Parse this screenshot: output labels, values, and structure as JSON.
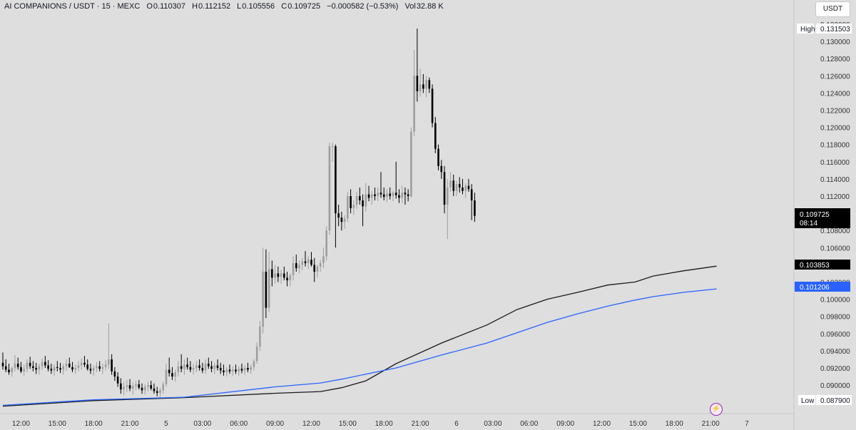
{
  "header": {
    "symbol": "AI COMPANIONS / USDT · 15 · MEXC",
    "open_label": "O",
    "open": "0.110307",
    "high_label": "H",
    "high": "0.112152",
    "low_label": "L",
    "low": "0.105556",
    "close_label": "C",
    "close": "0.109725",
    "change": "−0.000582 (−0.53%)",
    "volume_label": "Vol",
    "volume": "32.88 K"
  },
  "currency_button": "USDT",
  "price_axis": {
    "ticks": [
      "0.132000",
      "0.130000",
      "0.128000",
      "0.126000",
      "0.124000",
      "0.122000",
      "0.120000",
      "0.118000",
      "0.116000",
      "0.114000",
      "0.112000",
      "0.108000",
      "0.106000",
      "0.102000",
      "0.100000",
      "0.098000",
      "0.096000",
      "0.094000",
      "0.092000",
      "0.090000"
    ],
    "high_label": "High",
    "high_value": "0.131503",
    "low_label": "Low",
    "low_value": "0.087900",
    "last_price": "0.109725",
    "countdown": "08:14",
    "ma_black_value": "0.103853",
    "ma_blue_value": "0.101206"
  },
  "time_axis": [
    "12:00",
    "15:00",
    "18:00",
    "21:00",
    "5",
    "03:00",
    "06:00",
    "09:00",
    "12:00",
    "15:00",
    "18:00",
    "21:00",
    "6",
    "03:00",
    "06:00",
    "09:00",
    "12:00",
    "15:00",
    "18:00",
    "21:00",
    "7"
  ],
  "colors": {
    "up": "#9e9e9e",
    "down": "#000000",
    "ma_black": "#1a1a1a",
    "ma_blue": "#2962ff",
    "accent": "#9c27b0"
  },
  "chart_data": {
    "type": "candlestick",
    "x_start": "4 12:00",
    "interval": "15m",
    "ylim": [
      0.0865,
      0.1325
    ],
    "candles": [
      [
        0.0926,
        0.0938,
        0.0918,
        0.0922
      ],
      [
        0.0922,
        0.093,
        0.0915,
        0.0918
      ],
      [
        0.0918,
        0.0925,
        0.0912,
        0.0915
      ],
      [
        0.0915,
        0.0922,
        0.091,
        0.092
      ],
      [
        0.092,
        0.0935,
        0.0916,
        0.0925
      ],
      [
        0.0925,
        0.0932,
        0.0918,
        0.0921
      ],
      [
        0.0921,
        0.0927,
        0.0914,
        0.0916
      ],
      [
        0.0916,
        0.0924,
        0.0911,
        0.0919
      ],
      [
        0.0919,
        0.093,
        0.0915,
        0.0926
      ],
      [
        0.0926,
        0.0933,
        0.0919,
        0.0922
      ],
      [
        0.0922,
        0.0928,
        0.0916,
        0.092
      ],
      [
        0.092,
        0.0926,
        0.0913,
        0.0918
      ],
      [
        0.0918,
        0.0925,
        0.0912,
        0.0922
      ],
      [
        0.0922,
        0.0931,
        0.0918,
        0.0927
      ],
      [
        0.0927,
        0.0934,
        0.092,
        0.0923
      ],
      [
        0.0923,
        0.0929,
        0.0916,
        0.0919
      ],
      [
        0.0919,
        0.0925,
        0.0913,
        0.0917
      ],
      [
        0.0917,
        0.0924,
        0.0911,
        0.0921
      ],
      [
        0.0921,
        0.0928,
        0.0916,
        0.092
      ],
      [
        0.092,
        0.0926,
        0.0914,
        0.0918
      ],
      [
        0.0918,
        0.0925,
        0.0912,
        0.0922
      ],
      [
        0.0922,
        0.093,
        0.0917,
        0.0925
      ],
      [
        0.0925,
        0.0932,
        0.092,
        0.0921
      ],
      [
        0.0921,
        0.0927,
        0.0915,
        0.0918
      ],
      [
        0.0918,
        0.0924,
        0.0913,
        0.092
      ],
      [
        0.092,
        0.0928,
        0.0916,
        0.0923
      ],
      [
        0.0923,
        0.0931,
        0.0918,
        0.0926
      ],
      [
        0.0926,
        0.0934,
        0.0921,
        0.0924
      ],
      [
        0.0924,
        0.093,
        0.0917,
        0.0919
      ],
      [
        0.0919,
        0.0925,
        0.0913,
        0.0917
      ],
      [
        0.0917,
        0.0923,
        0.0911,
        0.092
      ],
      [
        0.092,
        0.0927,
        0.0915,
        0.0922
      ],
      [
        0.0922,
        0.0928,
        0.0916,
        0.0919
      ],
      [
        0.0919,
        0.0925,
        0.0913,
        0.0921
      ],
      [
        0.0921,
        0.0929,
        0.0917,
        0.0924
      ],
      [
        0.0924,
        0.0972,
        0.0919,
        0.093
      ],
      [
        0.093,
        0.0936,
        0.0912,
        0.0916
      ],
      [
        0.0916,
        0.0921,
        0.0905,
        0.091
      ],
      [
        0.091,
        0.0915,
        0.0898,
        0.0902
      ],
      [
        0.0902,
        0.0908,
        0.089,
        0.0895
      ],
      [
        0.0895,
        0.0904,
        0.0888,
        0.0898
      ],
      [
        0.0898,
        0.0906,
        0.0892,
        0.09
      ],
      [
        0.09,
        0.0907,
        0.0893,
        0.0896
      ],
      [
        0.0896,
        0.0903,
        0.0889,
        0.0899
      ],
      [
        0.0899,
        0.0905,
        0.0894,
        0.0901
      ],
      [
        0.0901,
        0.0906,
        0.0895,
        0.0897
      ],
      [
        0.0897,
        0.0902,
        0.089,
        0.0894
      ],
      [
        0.0894,
        0.0901,
        0.0889,
        0.0898
      ],
      [
        0.0898,
        0.0904,
        0.0893,
        0.09
      ],
      [
        0.09,
        0.0905,
        0.0894,
        0.0896
      ],
      [
        0.0896,
        0.0902,
        0.089,
        0.0893
      ],
      [
        0.0893,
        0.0898,
        0.0887,
        0.0891
      ],
      [
        0.0891,
        0.0897,
        0.0886,
        0.0894
      ],
      [
        0.0894,
        0.0904,
        0.089,
        0.0901
      ],
      [
        0.0901,
        0.0925,
        0.0898,
        0.0918
      ],
      [
        0.0918,
        0.0932,
        0.091,
        0.0914
      ],
      [
        0.0914,
        0.0921,
        0.0906,
        0.091
      ],
      [
        0.091,
        0.0918,
        0.0904,
        0.0915
      ],
      [
        0.0915,
        0.0928,
        0.091,
        0.0922
      ],
      [
        0.0922,
        0.0936,
        0.0915,
        0.0919
      ],
      [
        0.0919,
        0.093,
        0.0912,
        0.0924
      ],
      [
        0.0924,
        0.0932,
        0.0918,
        0.0921
      ],
      [
        0.0921,
        0.0928,
        0.0915,
        0.0918
      ],
      [
        0.0918,
        0.0925,
        0.0912,
        0.092
      ],
      [
        0.092,
        0.0928,
        0.0915,
        0.0923
      ],
      [
        0.0923,
        0.093,
        0.0917,
        0.092
      ],
      [
        0.092,
        0.0926,
        0.0914,
        0.0917
      ],
      [
        0.0917,
        0.093,
        0.0913,
        0.0925
      ],
      [
        0.0925,
        0.0932,
        0.0919,
        0.0922
      ],
      [
        0.0922,
        0.0928,
        0.0915,
        0.0919
      ],
      [
        0.0919,
        0.0926,
        0.0913,
        0.0923
      ],
      [
        0.0923,
        0.093,
        0.0917,
        0.092
      ],
      [
        0.092,
        0.0926,
        0.0913,
        0.0917
      ],
      [
        0.0917,
        0.0924,
        0.0911,
        0.0915
      ],
      [
        0.0915,
        0.0921,
        0.091,
        0.0918
      ],
      [
        0.0918,
        0.0924,
        0.0913,
        0.0916
      ],
      [
        0.0916,
        0.0922,
        0.0911,
        0.0918
      ],
      [
        0.0918,
        0.0924,
        0.0913,
        0.0916
      ],
      [
        0.0916,
        0.0922,
        0.0911,
        0.0919
      ],
      [
        0.0919,
        0.0925,
        0.0914,
        0.0917
      ],
      [
        0.0917,
        0.0923,
        0.0912,
        0.092
      ],
      [
        0.092,
        0.0926,
        0.0915,
        0.0918
      ],
      [
        0.0918,
        0.0924,
        0.0913,
        0.0921
      ],
      [
        0.0921,
        0.093,
        0.0917,
        0.0928
      ],
      [
        0.0928,
        0.095,
        0.0925,
        0.0945
      ],
      [
        0.0945,
        0.0975,
        0.094,
        0.0968
      ],
      [
        0.0968,
        0.106,
        0.096,
        0.1032
      ],
      [
        0.1032,
        0.1058,
        0.0978,
        0.099
      ],
      [
        0.099,
        0.1055,
        0.0985,
        0.1035
      ],
      [
        0.1035,
        0.1045,
        0.1015,
        0.1025
      ],
      [
        0.1025,
        0.104,
        0.1018,
        0.103
      ],
      [
        0.103,
        0.1038,
        0.102,
        0.1026
      ],
      [
        0.1026,
        0.1034,
        0.1018,
        0.103
      ],
      [
        0.103,
        0.1038,
        0.1022,
        0.1025
      ],
      [
        0.1025,
        0.1032,
        0.1015,
        0.1022
      ],
      [
        0.1022,
        0.103,
        0.1015,
        0.1028
      ],
      [
        0.1028,
        0.105,
        0.1022,
        0.1042
      ],
      [
        0.1042,
        0.1052,
        0.1032,
        0.1036
      ],
      [
        0.1036,
        0.1045,
        0.103,
        0.104
      ],
      [
        0.104,
        0.1048,
        0.1034,
        0.1044
      ],
      [
        0.1044,
        0.1056,
        0.1038,
        0.1042
      ],
      [
        0.1042,
        0.105,
        0.1035,
        0.1046
      ],
      [
        0.1046,
        0.1055,
        0.1038,
        0.104
      ],
      [
        0.104,
        0.1048,
        0.102,
        0.1032
      ],
      [
        0.1032,
        0.104,
        0.1025,
        0.1038
      ],
      [
        0.1038,
        0.1046,
        0.1032,
        0.1042
      ],
      [
        0.1042,
        0.106,
        0.1036,
        0.105
      ],
      [
        0.105,
        0.1085,
        0.1045,
        0.108
      ],
      [
        0.108,
        0.1182,
        0.1075,
        0.1178
      ],
      [
        0.1178,
        0.1182,
        0.116,
        0.1178
      ],
      [
        0.1178,
        0.118,
        0.106,
        0.11
      ],
      [
        0.11,
        0.111,
        0.1085,
        0.1095
      ],
      [
        0.1095,
        0.1102,
        0.108,
        0.109
      ],
      [
        0.109,
        0.1098,
        0.1082,
        0.1094
      ],
      [
        0.1094,
        0.1125,
        0.109,
        0.112
      ],
      [
        0.112,
        0.1128,
        0.11,
        0.1106
      ],
      [
        0.1106,
        0.1115,
        0.1098,
        0.111
      ],
      [
        0.111,
        0.1125,
        0.1105,
        0.112
      ],
      [
        0.112,
        0.113,
        0.111,
        0.1115
      ],
      [
        0.1115,
        0.1122,
        0.1085,
        0.1108
      ],
      [
        0.1108,
        0.1135,
        0.1102,
        0.1122
      ],
      [
        0.1122,
        0.1132,
        0.1114,
        0.1118
      ],
      [
        0.1118,
        0.1126,
        0.111,
        0.1122
      ],
      [
        0.1122,
        0.113,
        0.1115,
        0.112
      ],
      [
        0.112,
        0.113,
        0.1114,
        0.1124
      ],
      [
        0.1124,
        0.1148,
        0.1118,
        0.1122
      ],
      [
        0.1122,
        0.113,
        0.1115,
        0.1119
      ],
      [
        0.1119,
        0.1128,
        0.1113,
        0.1123
      ],
      [
        0.1123,
        0.113,
        0.1116,
        0.112
      ],
      [
        0.112,
        0.1126,
        0.1114,
        0.1124
      ],
      [
        0.1124,
        0.116,
        0.1117,
        0.1121
      ],
      [
        0.1121,
        0.1128,
        0.1112,
        0.1118
      ],
      [
        0.1118,
        0.1132,
        0.1112,
        0.1124
      ],
      [
        0.1124,
        0.113,
        0.111,
        0.1122
      ],
      [
        0.1122,
        0.1128,
        0.1114,
        0.112
      ],
      [
        0.112,
        0.12,
        0.1118,
        0.1195
      ],
      [
        0.1195,
        0.129,
        0.119,
        0.126
      ],
      [
        0.126,
        0.1315,
        0.123,
        0.1242
      ],
      [
        0.1242,
        0.1268,
        0.1236,
        0.125
      ],
      [
        0.125,
        0.1262,
        0.124,
        0.1245
      ],
      [
        0.1245,
        0.126,
        0.1235,
        0.1255
      ],
      [
        0.1255,
        0.1258,
        0.124,
        0.1245
      ],
      [
        0.1245,
        0.125,
        0.12,
        0.1205
      ],
      [
        0.1205,
        0.1212,
        0.117,
        0.1175
      ],
      [
        0.1175,
        0.118,
        0.115,
        0.1155
      ],
      [
        0.1155,
        0.1162,
        0.114,
        0.1148
      ],
      [
        0.1148,
        0.1155,
        0.11,
        0.111
      ],
      [
        0.111,
        0.114,
        0.107,
        0.113
      ],
      [
        0.113,
        0.1148,
        0.1125,
        0.1138
      ],
      [
        0.1138,
        0.1145,
        0.112,
        0.1126
      ],
      [
        0.1126,
        0.1138,
        0.112,
        0.1134
      ],
      [
        0.1134,
        0.1142,
        0.1124,
        0.113
      ],
      [
        0.113,
        0.114,
        0.1122,
        0.1126
      ],
      [
        0.1126,
        0.1135,
        0.1118,
        0.1132
      ],
      [
        0.1132,
        0.114,
        0.1125,
        0.1128
      ],
      [
        0.1128,
        0.1134,
        0.1092,
        0.1115
      ],
      [
        0.1115,
        0.1124,
        0.109,
        0.1097
      ]
    ],
    "ma_black": [
      [
        0,
        0.08755
      ],
      [
        30,
        0.0882
      ],
      [
        60,
        0.08855
      ],
      [
        90,
        0.08905
      ],
      [
        105,
        0.08925
      ],
      [
        112,
        0.0897
      ],
      [
        120,
        0.0905
      ],
      [
        130,
        0.0925
      ],
      [
        145,
        0.0949
      ],
      [
        160,
        0.097
      ],
      [
        170,
        0.0988
      ],
      [
        180,
        0.1
      ],
      [
        190,
        0.1008
      ],
      [
        200,
        0.10165
      ],
      [
        209,
        0.102
      ],
      [
        215,
        0.1027
      ],
      [
        225,
        0.1033
      ],
      [
        236,
        0.10385
      ]
    ],
    "ma_blue": [
      [
        0,
        0.08765
      ],
      [
        30,
        0.0883
      ],
      [
        60,
        0.0886
      ],
      [
        90,
        0.0898
      ],
      [
        105,
        0.09025
      ],
      [
        112,
        0.0907
      ],
      [
        130,
        0.092
      ],
      [
        145,
        0.0935
      ],
      [
        160,
        0.0949
      ],
      [
        170,
        0.0961
      ],
      [
        180,
        0.0973
      ],
      [
        190,
        0.0983
      ],
      [
        200,
        0.0992
      ],
      [
        209,
        0.0999
      ],
      [
        215,
        0.1003
      ],
      [
        225,
        0.1008
      ],
      [
        236,
        0.1012
      ]
    ]
  }
}
